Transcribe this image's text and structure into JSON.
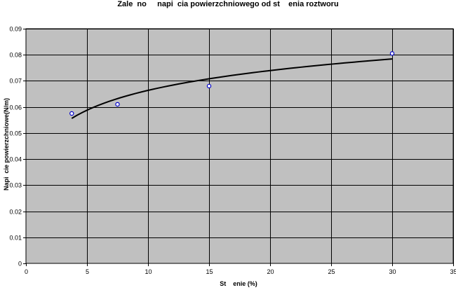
{
  "chart_data": {
    "type": "scatter",
    "title": "Zale  no     napi  cia powierzchniowego od st    enia roztworu",
    "xlabel": "St    enie (%)",
    "ylabel": "Napi  cie powierzchniowe(N/m)",
    "xlim": [
      0,
      35
    ],
    "ylim": [
      0,
      0.09
    ],
    "xticks": [
      0,
      5,
      10,
      15,
      20,
      25,
      30,
      35
    ],
    "yticks": [
      0,
      0.01,
      0.02,
      0.03,
      0.04,
      0.05,
      0.06,
      0.07,
      0.08,
      0.09
    ],
    "grid": true,
    "legend": "none",
    "plot_background": "#c0c0c0",
    "marker_color": "#0000cc",
    "series": [
      {
        "type": "scatter",
        "x": [
          3.75,
          7.5,
          15,
          30
        ],
        "y": [
          0.0575,
          0.061,
          0.068,
          0.0805
        ]
      },
      {
        "type": "line",
        "trendline": "logarithmic",
        "color": "#000000",
        "x": [
          3.75,
          4.5,
          5.5,
          6.5,
          7.5,
          9,
          10.5,
          12,
          13.5,
          15,
          17,
          19,
          21,
          23,
          25,
          27,
          30
        ],
        "y": [
          0.0556,
          0.0575,
          0.0594,
          0.0611,
          0.0624,
          0.0641,
          0.0655,
          0.0667,
          0.0678,
          0.0688,
          0.0699,
          0.071,
          0.0719,
          0.0728,
          0.0736,
          0.0743,
          0.0784
        ]
      }
    ]
  }
}
